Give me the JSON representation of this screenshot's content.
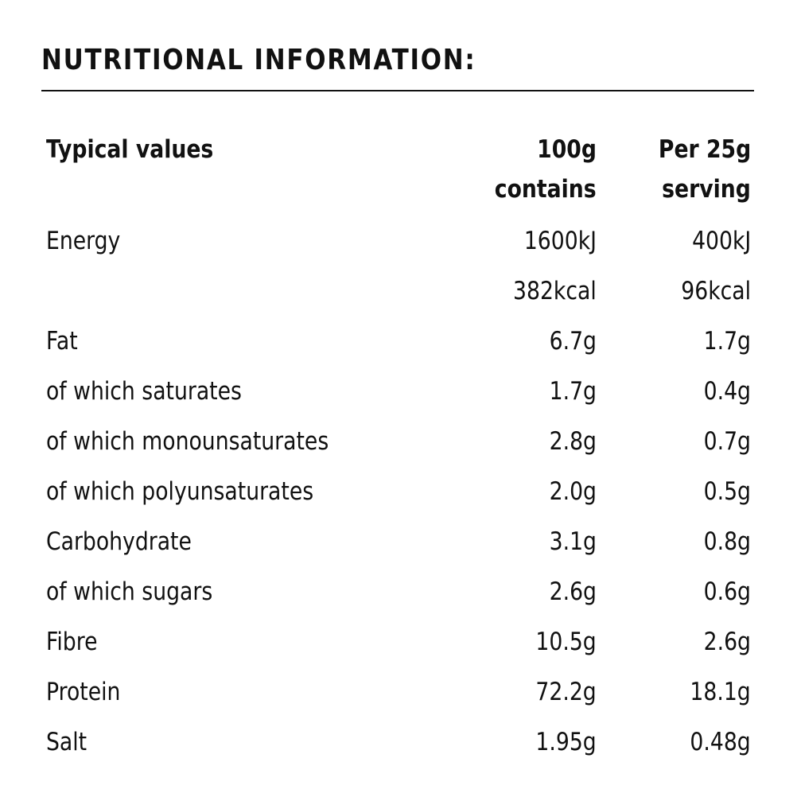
{
  "title": "NUTRITIONAL INFORMATION:",
  "header": {
    "name": "Typical values",
    "col1_line1": "100g",
    "col1_line2": "contains",
    "col2_line1": "Per 25g",
    "col2_line2": "serving"
  },
  "rows": [
    {
      "name": "Energy",
      "per100": "1600kJ",
      "perServing": "400kJ"
    },
    {
      "name": "",
      "per100": "382kcal",
      "perServing": "96kcal"
    },
    {
      "name": "Fat",
      "per100": "6.7g",
      "perServing": "1.7g"
    },
    {
      "name": "of which saturates",
      "per100": "1.7g",
      "perServing": "0.4g"
    },
    {
      "name": "of which monounsaturates",
      "per100": "2.8g",
      "perServing": "0.7g"
    },
    {
      "name": "of which polyunsaturates",
      "per100": "2.0g",
      "perServing": "0.5g"
    },
    {
      "name": "Carbohydrate",
      "per100": "3.1g",
      "perServing": "0.8g"
    },
    {
      "name": "of which sugars",
      "per100": "2.6g",
      "perServing": "0.6g"
    },
    {
      "name": "Fibre",
      "per100": "10.5g",
      "perServing": "2.6g"
    },
    {
      "name": "Protein",
      "per100": "72.2g",
      "perServing": "18.1g"
    },
    {
      "name": "Salt",
      "per100": "1.95g",
      "perServing": "0.48g"
    }
  ]
}
